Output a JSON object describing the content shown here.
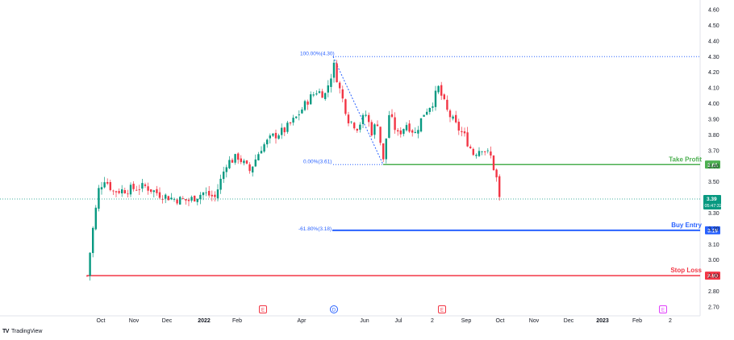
{
  "chart_data": {
    "type": "candlestick",
    "y_axis": {
      "ticks": [
        "4.60",
        "4.50",
        "4.40",
        "4.30",
        "4.20",
        "4.10",
        "4.00",
        "3.90",
        "3.80",
        "3.70",
        "3.60",
        "3.50",
        "3.40",
        "3.30",
        "3.20",
        "3.10",
        "3.00",
        "2.90",
        "2.80",
        "2.70"
      ],
      "ylim": [
        2.65,
        4.66
      ]
    },
    "x_axis": {
      "labels": [
        "Oct",
        "Nov",
        "Dec",
        "2022",
        "Feb",
        "Apr",
        "Jun",
        "Jul",
        "2",
        "Sep",
        "Oct",
        "Nov",
        "Dec",
        "2023",
        "Feb",
        "2"
      ]
    },
    "price_path": [
      [
        0,
        2.9
      ],
      [
        2,
        3.2
      ],
      [
        4,
        3.45
      ],
      [
        6,
        3.52
      ],
      [
        9,
        3.44
      ],
      [
        14,
        3.45
      ],
      [
        20,
        3.47
      ],
      [
        25,
        3.42
      ],
      [
        30,
        3.39
      ],
      [
        35,
        3.38
      ],
      [
        40,
        3.43
      ],
      [
        44,
        3.4
      ],
      [
        48,
        3.62
      ],
      [
        52,
        3.66
      ],
      [
        56,
        3.57
      ],
      [
        60,
        3.72
      ],
      [
        64,
        3.79
      ],
      [
        68,
        3.83
      ],
      [
        72,
        3.91
      ],
      [
        76,
        4.02
      ],
      [
        79,
        4.08
      ],
      [
        82,
        4.06
      ],
      [
        85,
        4.24
      ],
      [
        87,
        4.09
      ],
      [
        90,
        3.9
      ],
      [
        93,
        3.85
      ],
      [
        96,
        3.93
      ],
      [
        98,
        3.82
      ],
      [
        100,
        3.88
      ],
      [
        102,
        3.63
      ],
      [
        104,
        3.93
      ],
      [
        107,
        3.8
      ],
      [
        110,
        3.87
      ],
      [
        113,
        3.81
      ],
      [
        116,
        3.94
      ],
      [
        119,
        4.01
      ],
      [
        121,
        4.1
      ],
      [
        124,
        3.95
      ],
      [
        127,
        3.86
      ],
      [
        130,
        3.79
      ],
      [
        133,
        3.68
      ],
      [
        136,
        3.72
      ],
      [
        139,
        3.66
      ],
      [
        141,
        3.52
      ],
      [
        142,
        3.39
      ]
    ],
    "levels": [
      {
        "label": "Take Profit",
        "value": "3.61",
        "color": "#4caf50"
      },
      {
        "label": "Buy Entry",
        "value": "3.19",
        "color": "#2962ff"
      },
      {
        "label": "Stop Loss",
        "value": "2.90",
        "color": "#f23645"
      }
    ],
    "fib": [
      {
        "label": "100.00%(4.30)",
        "value": 4.3
      },
      {
        "label": "0.00%(3.61)",
        "value": 3.61
      },
      {
        "label": "-61.80%(3.18)",
        "value": 3.18
      }
    ],
    "last_price": {
      "value": "3.39",
      "countdown": "05:47:32",
      "color": "#089981"
    },
    "events": [
      {
        "label": "E",
        "color": "#f23645"
      },
      {
        "label": "D",
        "color": "#2962ff"
      },
      {
        "label": "E",
        "color": "#f23645"
      },
      {
        "label": "E",
        "color": "#e040fb"
      }
    ],
    "up_color": "#089981",
    "down_color": "#f23645"
  },
  "footer": {
    "brand": "TradingView"
  }
}
